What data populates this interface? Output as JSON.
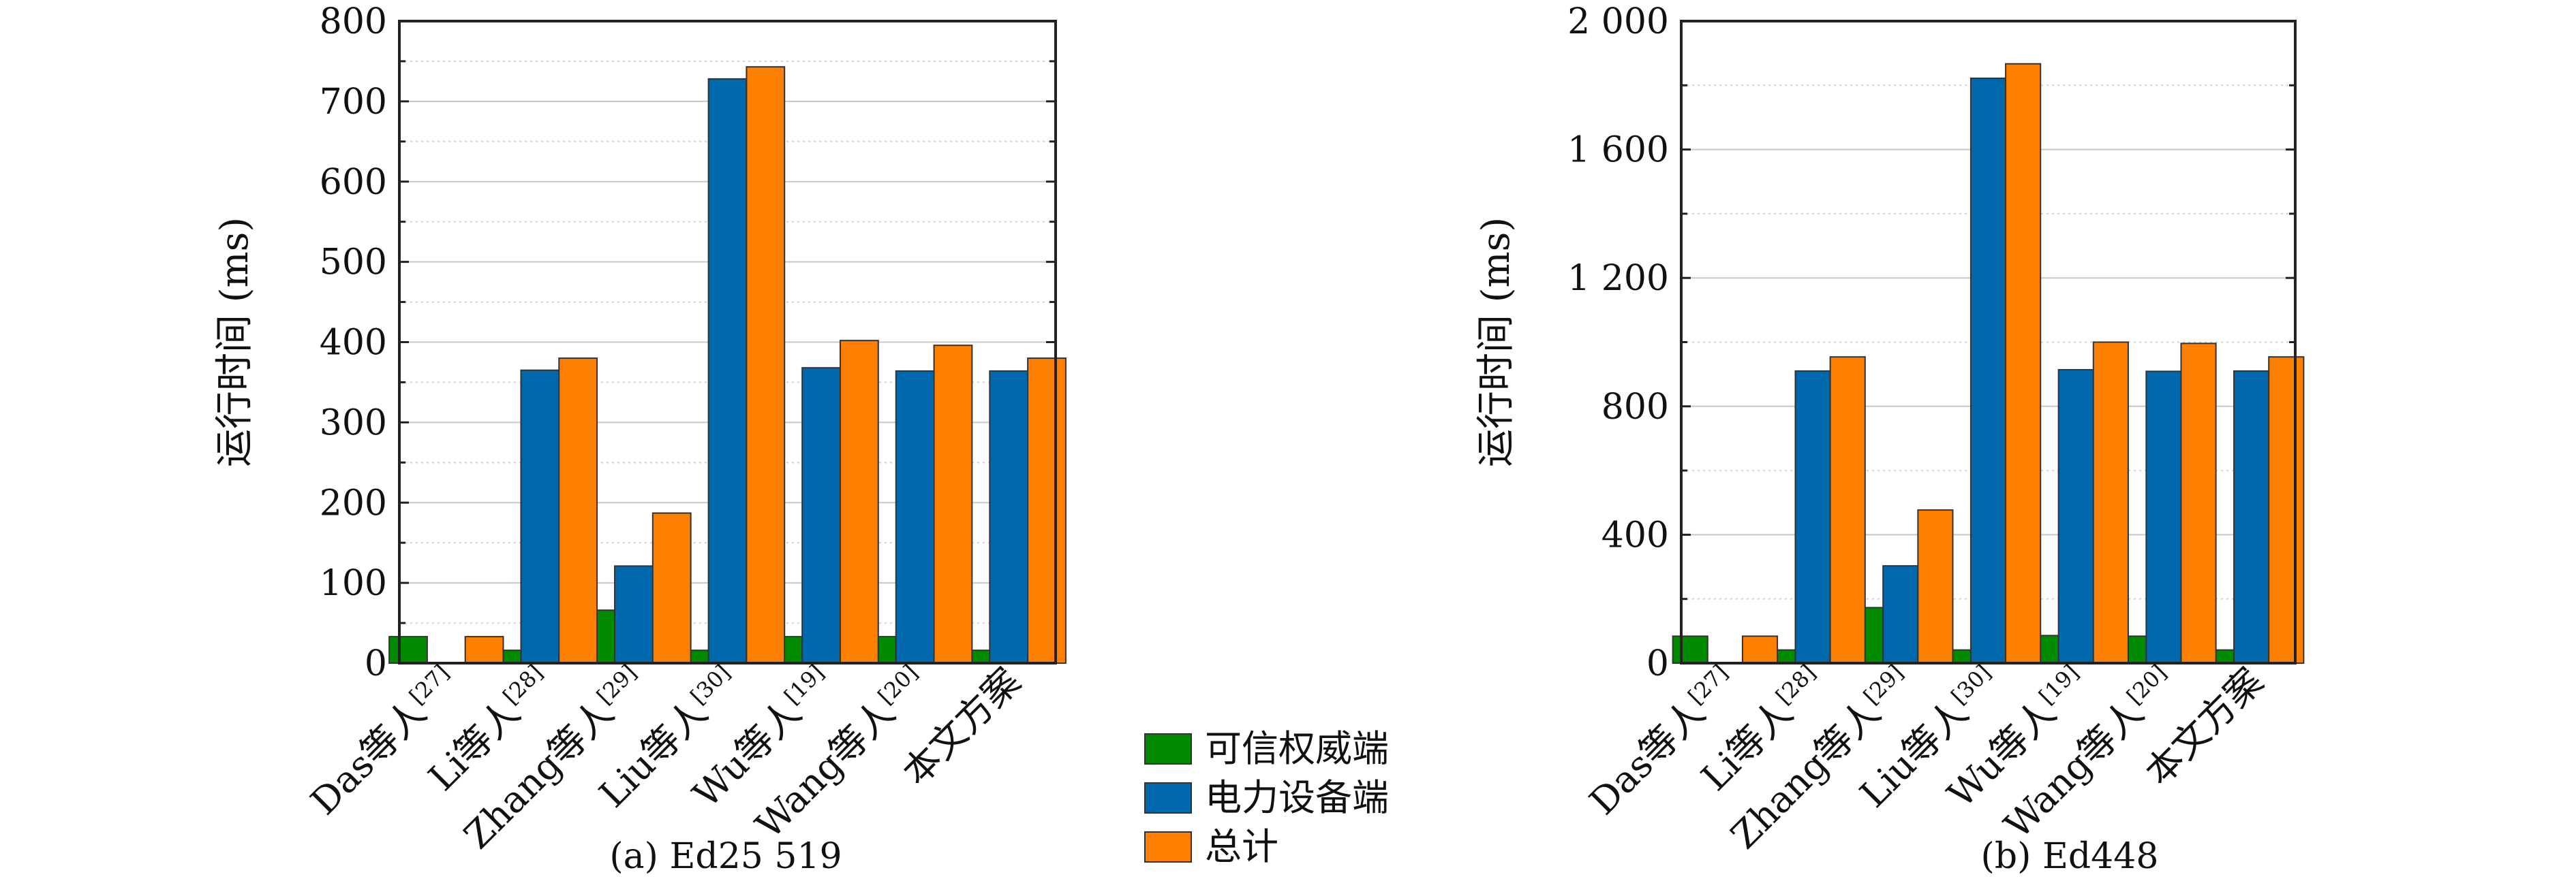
{
  "colors": {
    "series1": "#008a00",
    "series2": "#0068ad",
    "series3": "#ff8000"
  },
  "legend": {
    "placement": "bottom-center",
    "items": [
      "可信权威端",
      "电力设备端",
      "总计"
    ]
  },
  "chart_data": [
    {
      "type": "bar",
      "caption": "(a) Ed25 519",
      "ylabel": "运行时间 (ms)",
      "ylim": [
        0,
        800
      ],
      "yticks": [
        0,
        100,
        200,
        300,
        400,
        500,
        600,
        700,
        800
      ],
      "ytick_labels": [
        "0",
        "100",
        "200",
        "300",
        "400",
        "500",
        "600",
        "700",
        "800"
      ],
      "grid": true,
      "categories": [
        {
          "label": "Das等人",
          "ref": "[27]"
        },
        {
          "label": "Li等人",
          "ref": "[28]"
        },
        {
          "label": "Zhang等人",
          "ref": "[29]"
        },
        {
          "label": "Liu等人",
          "ref": "[30]"
        },
        {
          "label": "Wu等人",
          "ref": "[19]"
        },
        {
          "label": "Wang等人",
          "ref": "[20]"
        },
        {
          "label": "本文方案",
          "ref": ""
        }
      ],
      "series": [
        {
          "name": "可信权威端",
          "values": [
            33,
            16,
            66,
            16,
            33,
            33,
            16
          ]
        },
        {
          "name": "电力设备端",
          "values": [
            0,
            365,
            121,
            728,
            368,
            364,
            364
          ]
        },
        {
          "name": "总计",
          "values": [
            33,
            380,
            187,
            743,
            402,
            396,
            380
          ]
        }
      ]
    },
    {
      "type": "bar",
      "caption": "(b) Ed448",
      "ylabel": "运行时间 (ms)",
      "ylim": [
        0,
        2000
      ],
      "yticks": [
        0,
        400,
        800,
        1200,
        1600,
        2000
      ],
      "ytick_labels": [
        "0",
        "400",
        "800",
        "1 200",
        "1 600",
        "2 000"
      ],
      "grid": true,
      "categories": [
        {
          "label": "Das等人",
          "ref": "[27]"
        },
        {
          "label": "Li等人",
          "ref": "[28]"
        },
        {
          "label": "Zhang等人",
          "ref": "[29]"
        },
        {
          "label": "Liu等人",
          "ref": "[30]"
        },
        {
          "label": "Wu等人",
          "ref": "[19]"
        },
        {
          "label": "Wang等人",
          "ref": "[20]"
        },
        {
          "label": "本文方案",
          "ref": ""
        }
      ],
      "series": [
        {
          "name": "可信权威端",
          "values": [
            84,
            41,
            173,
            41,
            86,
            84,
            41
          ]
        },
        {
          "name": "电力设备端",
          "values": [
            0,
            910,
            303,
            1822,
            914,
            909,
            910
          ]
        },
        {
          "name": "总计",
          "values": [
            84,
            954,
            477,
            1867,
            1000,
            996,
            954
          ]
        }
      ]
    }
  ]
}
